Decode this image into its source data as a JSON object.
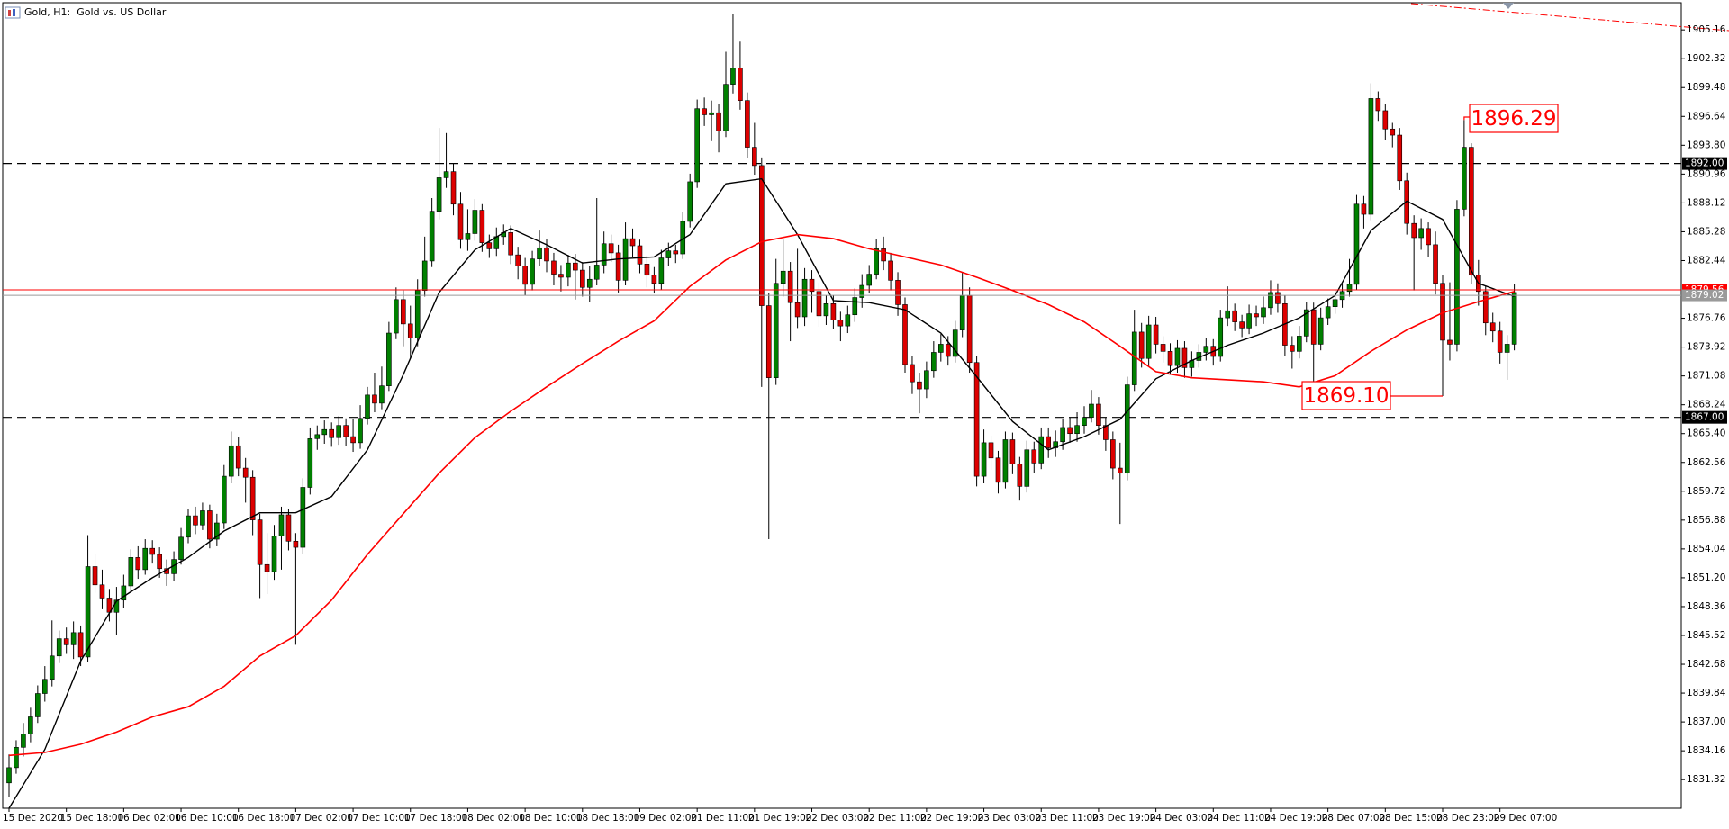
{
  "chart_data": {
    "type": "candlestick",
    "title": "Gold, H1:  Gold vs. US Dollar",
    "up_color": "#008000",
    "down_color": "#dd0000",
    "wick_color": "#000000",
    "ylim": [
      1828.5,
      1908.1
    ],
    "yticks": [
      1905.16,
      1902.32,
      1899.48,
      1896.64,
      {
        "value": 1893.8,
        "label": "1893.80"
      },
      1890.96,
      1888.12,
      1885.28,
      1882.44,
      1876.76,
      1873.92,
      1871.08,
      1868.24,
      {
        "value": 1865.4,
        "label": "1865.40"
      },
      1862.56,
      1859.72,
      1856.88,
      1854.04,
      {
        "value": 1851.2,
        "label": "1851.20"
      },
      1848.36,
      1845.52,
      1842.68,
      1839.84,
      {
        "value": 1837,
        "label": "1837.00"
      },
      1834.16,
      1831.32
    ],
    "levels": [
      {
        "value": 1892,
        "label": "1892.00"
      },
      {
        "value": 1867,
        "label": "1867.00"
      }
    ],
    "ask": {
      "value": 1879.56,
      "label": "1879.56",
      "color": "#ff0000"
    },
    "bid": {
      "value": 1879.02,
      "label": "1879.02",
      "color": "#9a9a9a"
    },
    "annotations": [
      "1896.29",
      "1869.10"
    ],
    "categories": [
      "15 Dec 2020",
      null,
      null,
      null,
      null,
      null,
      null,
      null,
      "15 Dec 18:00",
      null,
      null,
      null,
      null,
      null,
      null,
      null,
      "16 Dec 02:00",
      null,
      null,
      null,
      null,
      null,
      null,
      null,
      "16 Dec 10:00",
      null,
      null,
      null,
      null,
      null,
      null,
      null,
      "16 Dec 18:00",
      null,
      null,
      null,
      null,
      null,
      null,
      null,
      "17 Dec 02:00",
      null,
      null,
      null,
      null,
      null,
      null,
      null,
      "17 Dec 10:00",
      null,
      null,
      null,
      null,
      null,
      null,
      null,
      "17 Dec 18:00",
      null,
      null,
      null,
      null,
      null,
      null,
      null,
      "18 Dec 02:00",
      null,
      null,
      null,
      null,
      null,
      null,
      null,
      "18 Dec 10:00",
      null,
      null,
      null,
      null,
      null,
      null,
      null,
      "18 Dec 18:00",
      null,
      null,
      null,
      null,
      null,
      null,
      null,
      "19 Dec 02:00",
      null,
      null,
      null,
      null,
      null,
      null,
      null,
      "21 Dec 11:00",
      null,
      null,
      null,
      null,
      null,
      null,
      null,
      "21 Dec 19:00",
      null,
      null,
      null,
      null,
      null,
      null,
      null,
      "22 Dec 03:00",
      null,
      null,
      null,
      null,
      null,
      null,
      null,
      "22 Dec 11:00",
      null,
      null,
      null,
      null,
      null,
      null,
      null,
      "22 Dec 19:00",
      null,
      null,
      null,
      null,
      null,
      null,
      null,
      "23 Dec 03:00",
      null,
      null,
      null,
      null,
      null,
      null,
      null,
      "23 Dec 11:00",
      null,
      null,
      null,
      null,
      null,
      null,
      null,
      "23 Dec 19:00",
      null,
      null,
      null,
      null,
      null,
      null,
      null,
      "24 Dec 03:00",
      null,
      null,
      null,
      null,
      null,
      null,
      null,
      "24 Dec 11:00",
      null,
      null,
      null,
      null,
      null,
      null,
      null,
      "24 Dec 19:00",
      null,
      null,
      null,
      null,
      null,
      null,
      null,
      "28 Dec 07:00",
      null,
      null,
      null,
      null,
      null,
      null,
      null,
      "28 Dec 15:00",
      null,
      null,
      null,
      null,
      null,
      null,
      null,
      "28 Dec 23:00",
      null,
      null,
      null,
      null,
      null,
      null,
      null,
      "29 Dec 07:00",
      null,
      null
    ],
    "open": [
      1831.0,
      1832.5,
      1834.5,
      1835.8,
      1837.5,
      1839.8,
      1841.2,
      1843.5,
      1845.2,
      1844.6,
      1845.8,
      1843.4,
      1852.3,
      1850.5,
      1849.2,
      1847.8,
      1849.0,
      1850.4,
      1853.2,
      1852.0,
      1854.1,
      1853.5,
      1852.1,
      1851.6,
      1853.0,
      1855.2,
      1857.3,
      1856.4,
      1857.8,
      1855.0,
      1856.6,
      1861.2,
      1864.2,
      1862.0,
      1861.1,
      1856.9,
      1852.5,
      1851.8,
      1855.3,
      1857.4,
      1854.8,
      1854.2,
      1860.1,
      1864.9,
      1865.3,
      1865.8,
      1865.0,
      1866.2,
      1865.1,
      1864.5,
      1866.9,
      1869.2,
      1868.4,
      1870.1,
      1875.3,
      1878.6,
      1876.2,
      1874.8,
      1879.5,
      1882.4,
      1887.3,
      1890.6,
      1891.2,
      1888.0,
      1884.5,
      1885.1,
      1887.4,
      1884.2,
      1883.6,
      1884.8,
      1885.2,
      1883.0,
      1881.9,
      1880.1,
      1882.6,
      1883.7,
      1882.4,
      1881.1,
      1880.8,
      1882.2,
      1881.5,
      1879.8,
      1880.6,
      1882.0,
      1884.1,
      1883.2,
      1880.5,
      1884.6,
      1883.9,
      1882.1,
      1881.0,
      1880.2,
      1882.7,
      1883.4,
      1883.1,
      1886.3,
      1890.2,
      1897.4,
      1896.8,
      1897.0,
      1895.2,
      1899.8,
      1901.4,
      1898.2,
      1893.6,
      1891.8,
      1878.0,
      1870.9,
      1880.2,
      1881.4,
      1878.3,
      1876.9,
      1880.6,
      1879.4,
      1877.0,
      1878.2,
      1876.6,
      1876.0,
      1877.1,
      1878.8,
      1880.0,
      1881.1,
      1883.6,
      1882.4,
      1880.5,
      1878.1,
      1872.2,
      1870.5,
      1869.8,
      1871.6,
      1873.4,
      1874.2,
      1873.0,
      1875.6,
      1879.0,
      1872.4,
      1861.2,
      1864.5,
      1863.0,
      1860.6,
      1864.8,
      1862.4,
      1860.2,
      1863.8,
      1862.5,
      1865.1,
      1864.0,
      1864.6,
      1866.0,
      1865.4,
      1866.2,
      1867.0,
      1868.3,
      1866.2,
      1864.8,
      1862.0,
      1861.5,
      1870.2,
      1875.4,
      1872.8,
      1876.1,
      1874.2,
      1873.5,
      1872.1,
      1873.8,
      1871.9,
      1872.6,
      1873.4,
      1874.0,
      1873.0,
      1876.8,
      1877.5,
      1876.4,
      1875.8,
      1877.2,
      1876.9,
      1877.8,
      1879.3,
      1878.2,
      1874.1,
      1873.5,
      1875.0,
      1877.6,
      1874.2,
      1876.8,
      1877.9,
      1878.6,
      1879.4,
      1880.1,
      1888.0,
      1887.0,
      1898.4,
      1897.2,
      1895.4,
      1894.8,
      1890.3,
      1886.1,
      1884.7,
      1885.6,
      1884.0,
      1880.2,
      1874.6,
      1874.2,
      1887.5,
      1893.6,
      1881.0,
      1879.4,
      1876.3,
      1875.5,
      1873.4,
      1874.2
    ],
    "high": [
      1833.8,
      1835.2,
      1836.9,
      1838.4,
      1840.6,
      1842.5,
      1847.0,
      1846.0,
      1846.3,
      1846.9,
      1846.5,
      1855.4,
      1853.6,
      1852.0,
      1850.1,
      1850.3,
      1851.5,
      1854.0,
      1854.3,
      1855.0,
      1854.9,
      1854.2,
      1853.0,
      1853.8,
      1856.1,
      1858.0,
      1858.2,
      1858.6,
      1858.4,
      1857.5,
      1862.3,
      1865.6,
      1865.1,
      1863.0,
      1861.8,
      1857.5,
      1855.6,
      1856.4,
      1858.2,
      1858.0,
      1855.6,
      1861.0,
      1866.0,
      1866.2,
      1866.7,
      1866.5,
      1867.1,
      1866.9,
      1866.8,
      1868.2,
      1870.0,
      1871.4,
      1872.0,
      1876.4,
      1879.8,
      1879.5,
      1878.0,
      1880.6,
      1884.8,
      1888.6,
      1895.5,
      1895.0,
      1892.0,
      1889.2,
      1887.5,
      1888.5,
      1888.0,
      1885.0,
      1885.7,
      1886.0,
      1885.9,
      1883.8,
      1882.7,
      1883.4,
      1885.4,
      1884.6,
      1883.2,
      1882.0,
      1883.0,
      1883.1,
      1882.3,
      1881.9,
      1888.6,
      1885.3,
      1885.0,
      1884.0,
      1886.2,
      1885.6,
      1884.5,
      1882.9,
      1881.8,
      1883.5,
      1884.2,
      1884.0,
      1887.2,
      1891.0,
      1898.3,
      1898.5,
      1898.2,
      1897.9,
      1903.0,
      1906.7,
      1904.0,
      1899.0,
      1896.0,
      1892.6,
      1879.2,
      1882.6,
      1884.5,
      1882.3,
      1883.6,
      1881.7,
      1881.5,
      1880.3,
      1879.0,
      1879.0,
      1877.4,
      1878.0,
      1879.7,
      1881.1,
      1882.0,
      1884.6,
      1884.8,
      1883.2,
      1881.3,
      1878.8,
      1873.0,
      1871.4,
      1872.5,
      1874.5,
      1875.2,
      1875.0,
      1876.5,
      1881.3,
      1879.8,
      1873.0,
      1865.8,
      1865.2,
      1863.7,
      1865.6,
      1865.5,
      1863.1,
      1864.7,
      1864.6,
      1866.0,
      1866.0,
      1865.7,
      1866.8,
      1867.0,
      1867.5,
      1868.1,
      1869.7,
      1869.0,
      1867.0,
      1865.6,
      1864.5,
      1871.0,
      1877.6,
      1876.3,
      1877.0,
      1876.9,
      1875.0,
      1874.3,
      1874.6,
      1874.5,
      1873.5,
      1874.2,
      1874.8,
      1874.7,
      1877.6,
      1879.9,
      1878.2,
      1877.1,
      1878.1,
      1878.0,
      1878.9,
      1880.5,
      1880.2,
      1879.0,
      1875.0,
      1876.0,
      1878.4,
      1878.3,
      1877.8,
      1878.7,
      1879.6,
      1880.2,
      1882.6,
      1888.9,
      1888.8,
      1899.9,
      1899.1,
      1897.9,
      1896.0,
      1895.5,
      1891.1,
      1886.9,
      1886.6,
      1886.2,
      1885.3,
      1881.0,
      1880.3,
      1888.4,
      1896.29,
      1894.0,
      1882.5,
      1880.0,
      1877.3,
      1876.4,
      1875.1,
      1880.1
    ],
    "low": [
      1829.6,
      1831.9,
      1833.6,
      1835.0,
      1836.9,
      1839.0,
      1840.5,
      1842.8,
      1843.7,
      1843.2,
      1842.5,
      1842.9,
      1849.7,
      1848.1,
      1846.9,
      1845.6,
      1848.2,
      1849.8,
      1851.1,
      1851.5,
      1852.6,
      1851.2,
      1850.4,
      1850.9,
      1852.5,
      1854.6,
      1855.5,
      1855.9,
      1854.1,
      1854.3,
      1856.0,
      1860.5,
      1861.2,
      1858.6,
      1855.4,
      1849.2,
      1849.6,
      1851.0,
      1852.0,
      1853.9,
      1844.6,
      1853.5,
      1859.4,
      1863.8,
      1864.4,
      1864.1,
      1864.3,
      1864.2,
      1863.6,
      1863.9,
      1866.3,
      1867.5,
      1867.8,
      1869.6,
      1874.7,
      1874.0,
      1872.8,
      1874.0,
      1878.9,
      1881.8,
      1886.5,
      1889.6,
      1886.9,
      1883.6,
      1883.4,
      1884.4,
      1883.3,
      1882.7,
      1882.9,
      1884.0,
      1882.1,
      1880.6,
      1879.0,
      1879.5,
      1881.9,
      1881.3,
      1880.0,
      1879.4,
      1879.9,
      1878.6,
      1878.9,
      1878.4,
      1880.0,
      1881.2,
      1882.3,
      1879.3,
      1880.0,
      1882.8,
      1881.2,
      1879.8,
      1879.2,
      1879.6,
      1881.9,
      1882.2,
      1882.6,
      1885.7,
      1889.6,
      1895.7,
      1894.2,
      1893.1,
      1894.6,
      1898.9,
      1897.3,
      1892.5,
      1890.9,
      1870.0,
      1855.0,
      1870.2,
      1878.9,
      1874.5,
      1875.8,
      1876.0,
      1877.3,
      1875.9,
      1876.1,
      1875.7,
      1874.5,
      1875.3,
      1876.4,
      1877.8,
      1879.2,
      1880.6,
      1881.5,
      1879.5,
      1877.0,
      1871.4,
      1869.3,
      1867.4,
      1868.9,
      1870.9,
      1872.5,
      1872.1,
      1872.4,
      1874.9,
      1871.4,
      1860.2,
      1860.5,
      1861.8,
      1859.5,
      1860.0,
      1861.4,
      1858.8,
      1859.6,
      1861.5,
      1861.9,
      1863.0,
      1863.1,
      1863.8,
      1864.5,
      1864.6,
      1865.4,
      1866.5,
      1865.3,
      1863.7,
      1860.9,
      1856.5,
      1860.8,
      1869.6,
      1871.9,
      1872.0,
      1873.3,
      1872.4,
      1871.2,
      1871.4,
      1870.9,
      1871.0,
      1871.9,
      1872.6,
      1872.1,
      1872.5,
      1876.0,
      1875.5,
      1874.9,
      1875.2,
      1876.0,
      1876.2,
      1877.1,
      1877.3,
      1873.0,
      1871.8,
      1872.8,
      1874.4,
      1870.0,
      1873.6,
      1876.1,
      1877.2,
      1877.8,
      1878.9,
      1879.6,
      1885.6,
      1886.4,
      1896.2,
      1894.3,
      1893.6,
      1889.4,
      1885.0,
      1879.5,
      1883.5,
      1882.8,
      1879.1,
      1869.1,
      1872.6,
      1873.5,
      1886.8,
      1880.1,
      1878.0,
      1875.1,
      1874.4,
      1872.3,
      1870.7,
      1873.6
    ],
    "close": [
      1832.5,
      1834.5,
      1835.8,
      1837.5,
      1839.8,
      1841.2,
      1843.5,
      1845.2,
      1844.6,
      1845.8,
      1843.4,
      1852.3,
      1850.5,
      1849.2,
      1847.8,
      1849.0,
      1850.4,
      1853.2,
      1852.0,
      1854.1,
      1853.5,
      1852.1,
      1851.6,
      1853.0,
      1855.2,
      1857.3,
      1856.4,
      1857.8,
      1855.0,
      1856.6,
      1861.2,
      1864.2,
      1862.0,
      1861.1,
      1856.9,
      1852.5,
      1851.8,
      1855.3,
      1857.4,
      1854.8,
      1854.2,
      1860.1,
      1864.9,
      1865.3,
      1865.8,
      1865.0,
      1866.2,
      1865.1,
      1864.5,
      1866.9,
      1869.2,
      1868.4,
      1870.1,
      1875.3,
      1878.6,
      1876.2,
      1874.8,
      1879.5,
      1882.4,
      1887.3,
      1890.6,
      1891.2,
      1888.0,
      1884.5,
      1885.1,
      1887.4,
      1884.2,
      1883.6,
      1884.8,
      1885.2,
      1883.0,
      1881.9,
      1880.1,
      1882.6,
      1883.7,
      1882.4,
      1881.1,
      1880.8,
      1882.2,
      1881.5,
      1879.8,
      1880.6,
      1882.0,
      1884.1,
      1883.2,
      1880.5,
      1884.6,
      1883.9,
      1882.1,
      1881.0,
      1880.2,
      1882.7,
      1883.4,
      1883.1,
      1886.3,
      1890.2,
      1897.4,
      1896.8,
      1897.0,
      1895.2,
      1899.8,
      1901.4,
      1898.2,
      1893.6,
      1891.8,
      1878.0,
      1870.9,
      1880.2,
      1881.4,
      1878.3,
      1876.9,
      1880.6,
      1879.4,
      1877.0,
      1878.2,
      1876.6,
      1876.0,
      1877.1,
      1878.8,
      1880.0,
      1881.1,
      1883.6,
      1882.4,
      1880.5,
      1878.1,
      1872.2,
      1870.5,
      1869.8,
      1871.6,
      1873.4,
      1874.2,
      1873.0,
      1875.6,
      1879.0,
      1872.4,
      1861.2,
      1864.5,
      1863.0,
      1860.6,
      1864.8,
      1862.4,
      1860.2,
      1863.8,
      1862.5,
      1865.1,
      1864.0,
      1864.6,
      1866.0,
      1865.4,
      1866.2,
      1867.0,
      1868.3,
      1866.2,
      1864.8,
      1862.0,
      1861.5,
      1870.2,
      1875.4,
      1872.8,
      1876.1,
      1874.2,
      1873.5,
      1872.1,
      1873.8,
      1871.9,
      1872.6,
      1873.4,
      1874.0,
      1873.0,
      1876.8,
      1877.5,
      1876.4,
      1875.8,
      1877.2,
      1876.9,
      1877.8,
      1879.3,
      1878.2,
      1874.1,
      1873.5,
      1875.0,
      1877.6,
      1874.2,
      1876.8,
      1877.9,
      1878.6,
      1879.4,
      1880.1,
      1888.0,
      1887.0,
      1898.4,
      1897.2,
      1895.4,
      1894.8,
      1890.3,
      1886.1,
      1884.7,
      1885.6,
      1884.0,
      1880.2,
      1874.6,
      1874.2,
      1887.5,
      1893.6,
      1881.0,
      1879.4,
      1876.3,
      1875.5,
      1873.4,
      1874.2,
      1879.3
    ],
    "series": [
      {
        "color": "#000000",
        "x": [
          0,
          5,
          10,
          15,
          20,
          25,
          30,
          35,
          40,
          45,
          50,
          55,
          60,
          65,
          70,
          75,
          80,
          85,
          90,
          95,
          100,
          105,
          110,
          115,
          120,
          125,
          130,
          135,
          140,
          145,
          150,
          155,
          160,
          165,
          170,
          175,
          180,
          185,
          190,
          195,
          200,
          205,
          210
        ],
        "values": [
          1828.5,
          1834.3,
          1843.0,
          1848.9,
          1851.2,
          1853.2,
          1855.8,
          1857.6,
          1857.6,
          1859.2,
          1863.8,
          1871.2,
          1879.3,
          1883.5,
          1885.6,
          1884.0,
          1882.2,
          1882.6,
          1882.8,
          1885.0,
          1890.0,
          1890.5,
          1885.0,
          1878.5,
          1878.3,
          1877.6,
          1875.3,
          1871.0,
          1866.6,
          1863.8,
          1865.1,
          1866.8,
          1870.8,
          1872.6,
          1874.1,
          1875.3,
          1876.8,
          1879.0,
          1885.4,
          1888.3,
          1886.5,
          1880.2,
          1878.9
        ]
      },
      {
        "color": "#ff0000",
        "x": [
          0,
          5,
          10,
          15,
          20,
          25,
          30,
          35,
          40,
          45,
          50,
          55,
          60,
          65,
          70,
          75,
          80,
          85,
          90,
          95,
          100,
          105,
          110,
          115,
          120,
          125,
          130,
          135,
          140,
          145,
          150,
          155,
          160,
          165,
          170,
          175,
          180,
          185,
          190,
          195,
          200,
          205,
          210
        ],
        "values": [
          1833.7,
          1834.0,
          1834.8,
          1836.0,
          1837.5,
          1838.5,
          1840.5,
          1843.5,
          1845.5,
          1849.0,
          1853.5,
          1857.5,
          1861.5,
          1865.0,
          1867.6,
          1870.0,
          1872.3,
          1874.5,
          1876.5,
          1879.9,
          1882.5,
          1884.3,
          1885.0,
          1884.6,
          1883.6,
          1882.8,
          1882.0,
          1880.8,
          1879.5,
          1878.1,
          1876.4,
          1874.0,
          1871.5,
          1870.9,
          1870.7,
          1870.5,
          1870.0,
          1871.1,
          1873.5,
          1875.6,
          1877.3,
          1878.4,
          1879.4
        ]
      }
    ]
  }
}
